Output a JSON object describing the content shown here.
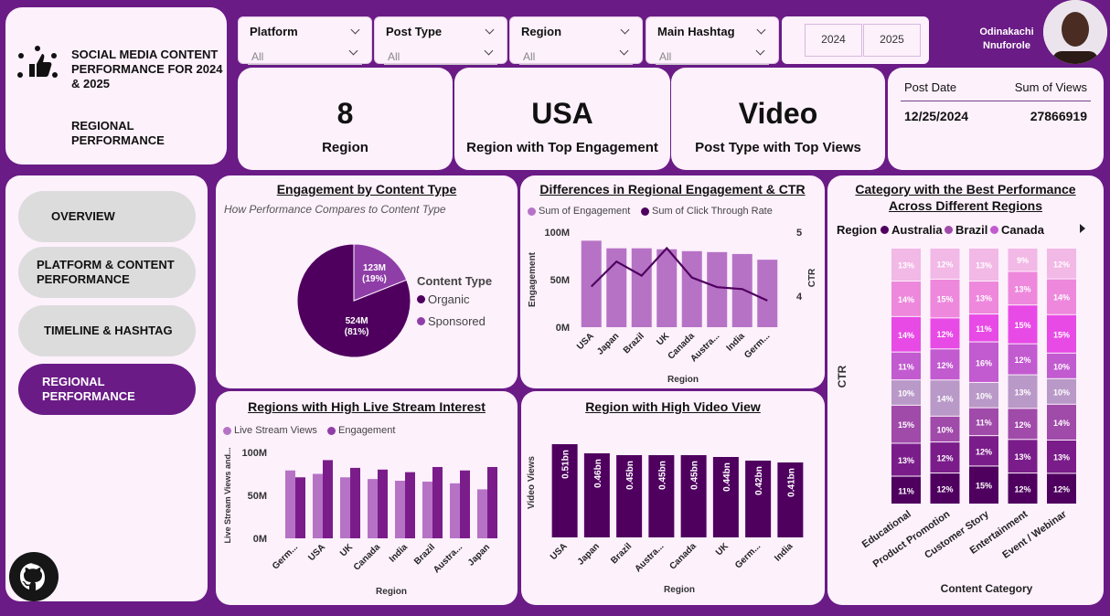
{
  "header": {
    "app_title": "SOCIAL MEDIA CONTENT PERFORMANCE FOR 2024 & 2025",
    "page_subtitle": "REGIONAL PERFORMANCE",
    "user_name": "Odinakachi Nnuforole"
  },
  "filters": [
    {
      "label": "Platform",
      "value": "All"
    },
    {
      "label": "Post Type",
      "value": "All"
    },
    {
      "label": "Region",
      "value": "All"
    },
    {
      "label": "Main Hashtag",
      "value": "All"
    }
  ],
  "years": [
    "2024",
    "2025"
  ],
  "kpis": [
    {
      "value": "8",
      "caption": "Region"
    },
    {
      "value": "USA",
      "caption": "Region with Top Engagement"
    },
    {
      "value": "Video",
      "caption": "Post Type with Top Views"
    }
  ],
  "views_table": {
    "col1": "Post Date",
    "col2": "Sum of Views",
    "row": {
      "date": "12/25/2024",
      "views": "27866919"
    }
  },
  "nav": [
    {
      "label": "OVERVIEW",
      "active": false
    },
    {
      "label": "PLATFORM & CONTENT PERFORMANCE",
      "active": false
    },
    {
      "label": "TIMELINE & HASHTAG",
      "active": false
    },
    {
      "label": "REGIONAL PERFORMANCE",
      "active": true
    }
  ],
  "colors": {
    "purple_dark": "#4f005f",
    "purple_mid": "#8f3ea8",
    "purple_light": "#b673c6",
    "background": "#6a1b86",
    "card": "#fdf1fc"
  },
  "chart_data": [
    {
      "id": "engagement_by_content_type",
      "type": "pie",
      "title": "Engagement by Content Type",
      "subtitle": "How Performance Compares to Content Type",
      "legend_title": "Content Type",
      "slices": [
        {
          "name": "Organic",
          "value": 524,
          "label": "524M",
          "pct": "(81%)",
          "color": "#4f005f"
        },
        {
          "name": "Sponsored",
          "value": 123,
          "label": "123M",
          "pct": "(19%)",
          "color": "#8f3ea8"
        }
      ]
    },
    {
      "id": "regional_engagement_ctr",
      "type": "bar",
      "title": "Differences in Regional Engagement & CTR",
      "legend": [
        "Sum of Engagement",
        "Sum of Click Through Rate"
      ],
      "categories": [
        "USA",
        "Japan",
        "Brazil",
        "UK",
        "Canada",
        "Austra...",
        "India",
        "Germ..."
      ],
      "engagement": [
        91,
        83,
        83,
        82,
        80,
        79,
        77,
        71
      ],
      "ctr": [
        4.15,
        4.54,
        4.32,
        4.75,
        4.29,
        4.14,
        4.11,
        3.93
      ],
      "ylabel": "Engagement",
      "y2label": "CTR",
      "xlabel": "Region",
      "y_ticks": [
        "0M",
        "50M",
        "100M"
      ],
      "y2_ticks": [
        "4",
        "5"
      ],
      "ylim": [
        0,
        100
      ],
      "y2lim": [
        3.5,
        5
      ]
    },
    {
      "id": "category_best_performance",
      "type": "bar",
      "title": "Category with the Best Performance Across Different Regions",
      "legend_title": "Region",
      "legend": [
        "Australia",
        "Brazil",
        "Canada"
      ],
      "ylabel": "CTR",
      "xlabel": "Content Category",
      "categories": [
        "Educational",
        "Product Promotion",
        "Customer Story",
        "Entertainment",
        "Event / Webinar"
      ],
      "stack_colors": [
        "#4f005f",
        "#7a1d8a",
        "#a04aaa",
        "#b999c7",
        "#c25ad0",
        "#e84ae6",
        "#ee88dc",
        "#f2b8e6"
      ],
      "stacks": [
        [
          11,
          13,
          15,
          10,
          11,
          14,
          14,
          13
        ],
        [
          12,
          12,
          10,
          14,
          12,
          12,
          15,
          12
        ],
        [
          15,
          12,
          11,
          10,
          16,
          11,
          13,
          13
        ],
        [
          12,
          13,
          12,
          13,
          12,
          15,
          13,
          9
        ],
        [
          12,
          13,
          14,
          10,
          10,
          15,
          14,
          12
        ]
      ]
    },
    {
      "id": "live_stream_interest",
      "type": "bar",
      "title": "Regions with High Live Stream Interest",
      "legend": [
        "Live Stream Views",
        "Engagement"
      ],
      "categories": [
        "Germ...",
        "USA",
        "UK",
        "Canada",
        "India",
        "Brazil",
        "Austra...",
        "Japan"
      ],
      "series": [
        {
          "name": "Live Stream Views",
          "values": [
            79,
            75,
            71,
            69,
            67,
            66,
            64,
            57
          ]
        },
        {
          "name": "Engagement",
          "values": [
            71,
            91,
            82,
            80,
            77,
            83,
            79,
            83
          ]
        }
      ],
      "ylabel": "Live Stream Views and...",
      "xlabel": "Region",
      "y_ticks": [
        "0M",
        "50M",
        "100M"
      ],
      "ylim": [
        0,
        100
      ]
    },
    {
      "id": "high_video_view",
      "type": "bar",
      "title": "Region with High Video View",
      "categories": [
        "USA",
        "Japan",
        "Brazil",
        "Austra...",
        "Canada",
        "UK",
        "Germ...",
        "India"
      ],
      "values": [
        0.51,
        0.46,
        0.45,
        0.45,
        0.45,
        0.44,
        0.42,
        0.41
      ],
      "labels": [
        "0.51bn",
        "0.46bn",
        "0.45bn",
        "0.45bn",
        "0.45bn",
        "0.44bn",
        "0.42bn",
        "0.41bn"
      ],
      "ylabel": "Video Views",
      "xlabel": "Region",
      "ylim": [
        0,
        0.55
      ]
    }
  ]
}
